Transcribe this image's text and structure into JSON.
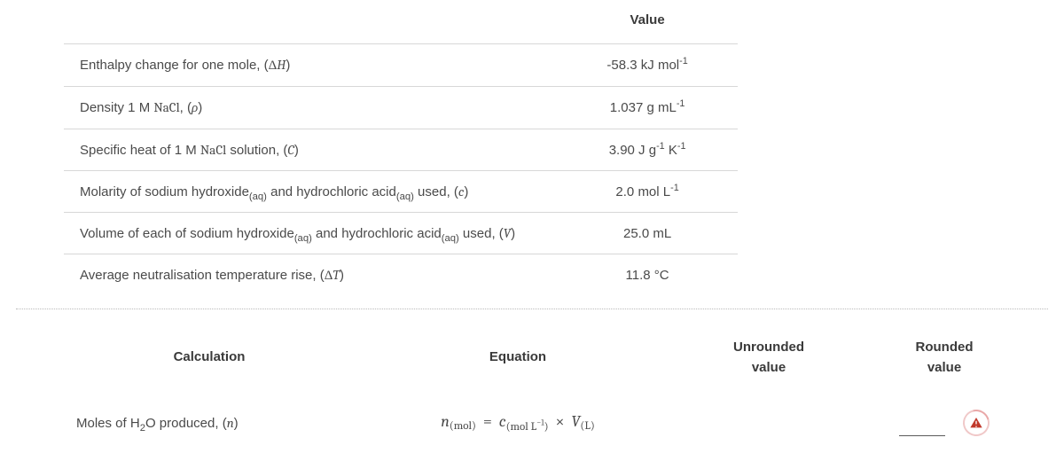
{
  "top_table": {
    "header_value": "Value",
    "rows": [
      {
        "desc_html": "Enthalpy change for one mole, (<span class='mr'>Δ</span><span class='mi'>H</span>)",
        "value_html": "-58.3 kJ mol<sup>-1</sup>"
      },
      {
        "desc_html": "Density 1 M <span class='mr'>NaCl</span>, (<span class='mi'>ρ</span>)",
        "value_html": "1.037 g mL<sup>-1</sup>"
      },
      {
        "desc_html": "Specific heat of 1 M <span class='mr'>NaCl</span> solution, (<span class='mi'>C</span>)",
        "value_html": "3.90 J g<sup>-1</sup> K<sup>-1</sup>"
      },
      {
        "desc_html": "Molarity of sodium hydroxide<sub class='chem'>(aq)</sub> and hydrochloric acid<sub class='chem'>(aq)</sub> used, (<span class='mi'>c</span>)",
        "value_html": "2.0 mol L<sup>-1</sup>"
      },
      {
        "desc_html": "Volume of each of sodium hydroxide<sub class='chem'>(aq)</sub> and hydrochloric acid<sub class='chem'>(aq)</sub> used, (<span class='mi'>V</span>)",
        "value_html": "25.0 mL"
      },
      {
        "desc_html": "Average neutralisation temperature rise, (<span class='mr'>Δ</span><span class='mi'>T</span>)",
        "value_html": "11.8 °C"
      }
    ]
  },
  "calc_table": {
    "headers": {
      "calc": "Calculation",
      "eq": "Equation",
      "un": "Unrounded value",
      "ro": "Rounded value"
    },
    "row": {
      "calc_html": "Moles of H<sub class='chem'>2</sub>O produced, (<span class='mi'>n</span>)",
      "eq_html": "<span class='eq'><span class='var'>n</span><span class='sub rm'>(mol)</span> &nbsp;=&nbsp; <span class='var'>c</span><span class='sub rm'>(mol&nbsp;L<sup>−1</sup>)</span> &nbsp;×&nbsp; <span class='var'>V</span><span class='sub rm'>(L)</span></span>"
    }
  },
  "colors": {
    "text": "#3a3a3a",
    "border": "#d7d7d7",
    "icon_ring": "#f0c8c8",
    "icon_fill": "#c0392b",
    "background": "#ffffff"
  }
}
